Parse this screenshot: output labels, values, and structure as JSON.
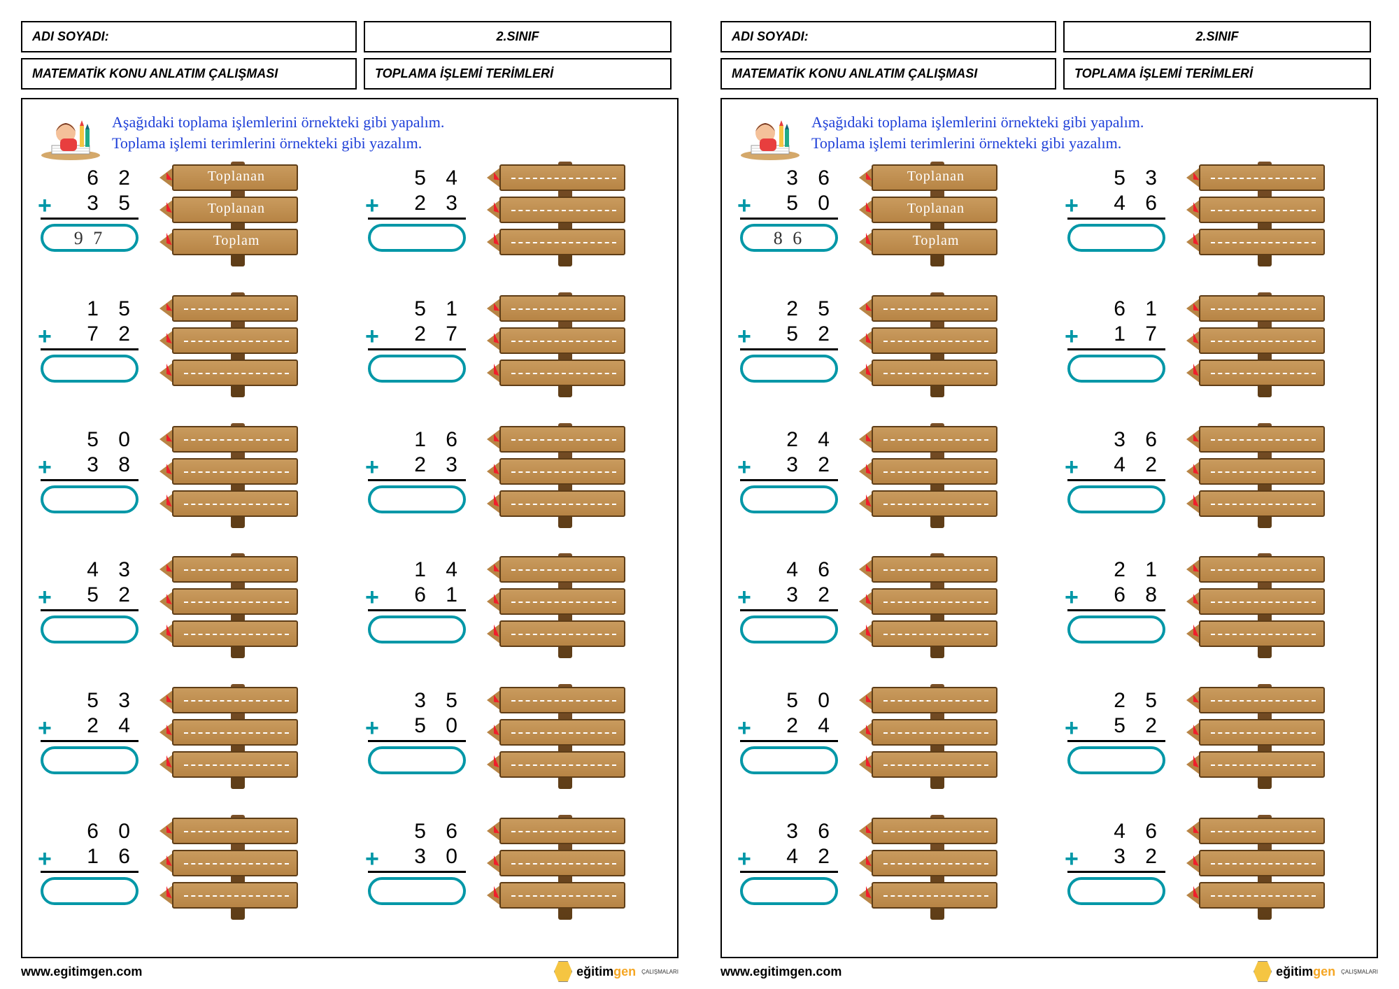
{
  "header": {
    "name_label": "ADI SOYADI:",
    "class_label": "2.SINIF",
    "subject_label": "MATEMATİK KONU ANLATIM ÇALIŞMASI",
    "topic_label": "TOPLAMA İŞLEMİ TERİMLERİ"
  },
  "instructions": {
    "line1": "Aşağıdaki toplama işlemlerini örnekteki gibi yapalım.",
    "line2": "Toplama işlemi terimlerini örnekteki gibi yazalım."
  },
  "terms": {
    "toplanan": "Toplanan",
    "toplam": "Toplam"
  },
  "colors": {
    "accent": "#0097a7",
    "arrow": "#f01f2b",
    "text_blue": "#1e3fd8",
    "plank": "#b78445",
    "plank_border": "#5e3d17",
    "post": "#6b4423"
  },
  "footer": {
    "url": "www.egitimgen.com",
    "brand1": "eğitim",
    "brand2": "gen",
    "sub": "ÇALIŞMALARI"
  },
  "pages": [
    {
      "problems": [
        {
          "a": "6 2",
          "b": "3 5",
          "result": "9 7",
          "example": true
        },
        {
          "a": "5 4",
          "b": "2 3",
          "result": "",
          "example": false
        },
        {
          "a": "1 5",
          "b": "7 2",
          "result": "",
          "example": false
        },
        {
          "a": "5 1",
          "b": "2 7",
          "result": "",
          "example": false
        },
        {
          "a": "5 0",
          "b": "3 8",
          "result": "",
          "example": false
        },
        {
          "a": "1 6",
          "b": "2 3",
          "result": "",
          "example": false
        },
        {
          "a": "4 3",
          "b": "5 2",
          "result": "",
          "example": false
        },
        {
          "a": "1 4",
          "b": "6 1",
          "result": "",
          "example": false
        },
        {
          "a": "5 3",
          "b": "2 4",
          "result": "",
          "example": false
        },
        {
          "a": "3 5",
          "b": "5 0",
          "result": "",
          "example": false
        },
        {
          "a": "6 0",
          "b": "1 6",
          "result": "",
          "example": false
        },
        {
          "a": "5 6",
          "b": "3 0",
          "result": "",
          "example": false
        }
      ]
    },
    {
      "problems": [
        {
          "a": "3 6",
          "b": "5 0",
          "result": "8 6",
          "example": true
        },
        {
          "a": "5 3",
          "b": "4 6",
          "result": "",
          "example": false
        },
        {
          "a": "2 5",
          "b": "5 2",
          "result": "",
          "example": false
        },
        {
          "a": "6 1",
          "b": "1 7",
          "result": "",
          "example": false
        },
        {
          "a": "2 4",
          "b": "3 2",
          "result": "",
          "example": false
        },
        {
          "a": "3 6",
          "b": "4 2",
          "result": "",
          "example": false
        },
        {
          "a": "4 6",
          "b": "3 2",
          "result": "",
          "example": false
        },
        {
          "a": "2 1",
          "b": "6 8",
          "result": "",
          "example": false
        },
        {
          "a": "5 0",
          "b": "2 4",
          "result": "",
          "example": false
        },
        {
          "a": "2 5",
          "b": "5 2",
          "result": "",
          "example": false
        },
        {
          "a": "3 6",
          "b": "4 2",
          "result": "",
          "example": false
        },
        {
          "a": "4 6",
          "b": "3 2",
          "result": "",
          "example": false
        }
      ]
    }
  ]
}
